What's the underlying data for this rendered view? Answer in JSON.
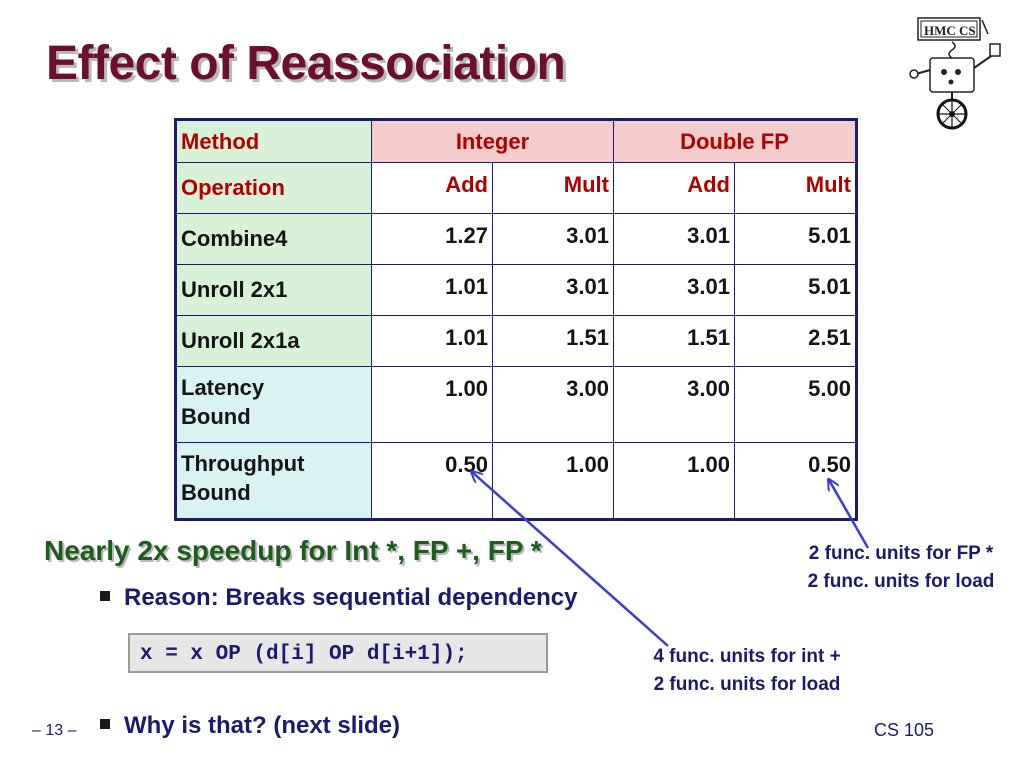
{
  "slide": {
    "title": "Effect of Reassociation",
    "logo_text": "HMC CS"
  },
  "table": {
    "header": {
      "method_label": "Method",
      "group1": "Integer",
      "group2": "Double FP"
    },
    "operation_row": {
      "label": "Operation",
      "cols": [
        "Add",
        "Mult",
        "Add",
        "Mult"
      ]
    },
    "rows": [
      {
        "method": "Combine4",
        "values": [
          "1.27",
          "3.01",
          "3.01",
          "5.01"
        ]
      },
      {
        "method": "Unroll 2x1",
        "values": [
          "1.01",
          "3.01",
          "3.01",
          "5.01"
        ]
      },
      {
        "method": "Unroll 2x1a",
        "values": [
          "1.01",
          "1.51",
          "1.51",
          "2.51"
        ]
      },
      {
        "method_line1": "Latency",
        "method_line2": "Bound",
        "values": [
          "1.00",
          "3.00",
          "3.00",
          "5.00"
        ]
      },
      {
        "method_line1": "Throughput",
        "method_line2": "Bound",
        "values": [
          "0.50",
          "1.00",
          "1.00",
          "0.50"
        ]
      }
    ]
  },
  "body": {
    "headline": "Nearly 2x speedup for Int *, FP +, FP *",
    "bullet1": "Reason: Breaks sequential dependency",
    "code": "x = x OP (d[i] OP d[i+1]);",
    "bullet2": "Why is that? (next slide)"
  },
  "notes": {
    "right_line1": "2 func. units for FP *",
    "right_line2": "2 func. units for load",
    "mid_line1": "4 func. units for int +",
    "mid_line2": "2 func. units for load"
  },
  "footer": {
    "page": "– 13 –",
    "course": "CS 105"
  },
  "colors": {
    "title": "#6b0f2c",
    "headline": "#1d5c1d",
    "body_text": "#1a1a6e",
    "label_red": "#b10000",
    "method_bg": "#d8f2d8",
    "bound_bg": "#d7f3f3",
    "group_bg": "#f4cccc",
    "arrow": "#3b3bd6"
  },
  "icons": [
    "robot-logo-icon",
    "square-bullet-icon",
    "arrow-icon"
  ]
}
